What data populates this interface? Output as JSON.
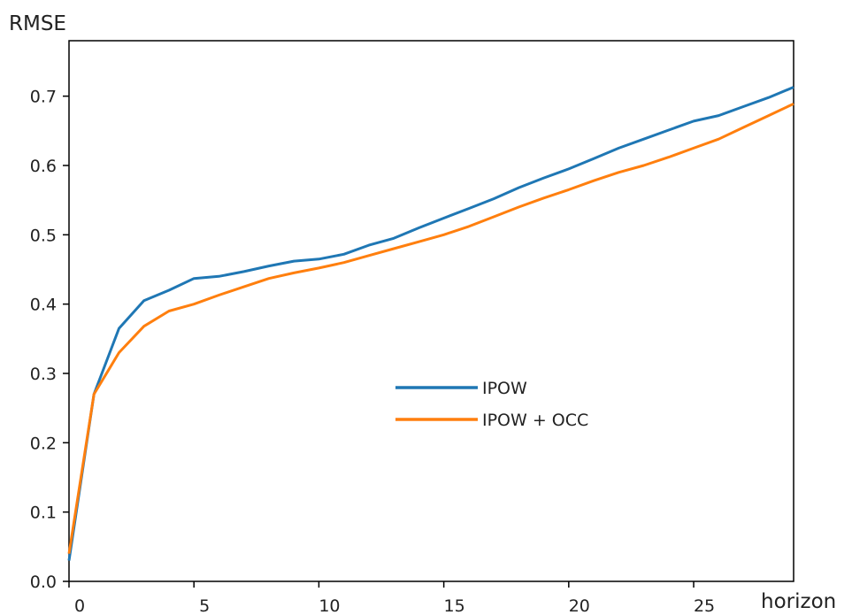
{
  "chart_data": {
    "type": "line",
    "title": "",
    "xlabel": "horizon",
    "ylabel": "RMSE",
    "xlim": [
      0,
      29
    ],
    "ylim": [
      0.0,
      0.78
    ],
    "xticks": [
      0,
      5,
      10,
      15,
      20,
      25
    ],
    "yticks": [
      0.0,
      0.1,
      0.2,
      0.3,
      0.4,
      0.5,
      0.6,
      0.7
    ],
    "ytick_labels": [
      "0.0",
      "0.1",
      "0.2",
      "0.3",
      "0.4",
      "0.5",
      "0.6",
      "0.7"
    ],
    "xtick_labels": [
      "0",
      "5",
      "10",
      "15",
      "20",
      "25"
    ],
    "grid": false,
    "legend_position": "center-right",
    "x": [
      0,
      1,
      2,
      3,
      4,
      5,
      6,
      7,
      8,
      9,
      10,
      11,
      12,
      13,
      14,
      15,
      16,
      17,
      18,
      19,
      20,
      21,
      22,
      23,
      24,
      25,
      26,
      27,
      28,
      29
    ],
    "series": [
      {
        "name": "IPOW",
        "color": "#1f77b4",
        "values": [
          0.03,
          0.27,
          0.365,
          0.405,
          0.42,
          0.437,
          0.44,
          0.447,
          0.455,
          0.462,
          0.465,
          0.472,
          0.485,
          0.495,
          0.51,
          0.524,
          0.538,
          0.552,
          0.568,
          0.582,
          0.595,
          0.61,
          0.625,
          0.638,
          0.651,
          0.664,
          0.672,
          0.685,
          0.698,
          0.713
        ]
      },
      {
        "name": "IPOW + OCC",
        "color": "#ff7f0e",
        "values": [
          0.04,
          0.27,
          0.33,
          0.368,
          0.39,
          0.4,
          0.413,
          0.425,
          0.437,
          0.445,
          0.452,
          0.46,
          0.47,
          0.48,
          0.49,
          0.5,
          0.512,
          0.526,
          0.54,
          0.553,
          0.565,
          0.578,
          0.59,
          0.6,
          0.612,
          0.625,
          0.638,
          0.655,
          0.672,
          0.689
        ]
      }
    ]
  }
}
